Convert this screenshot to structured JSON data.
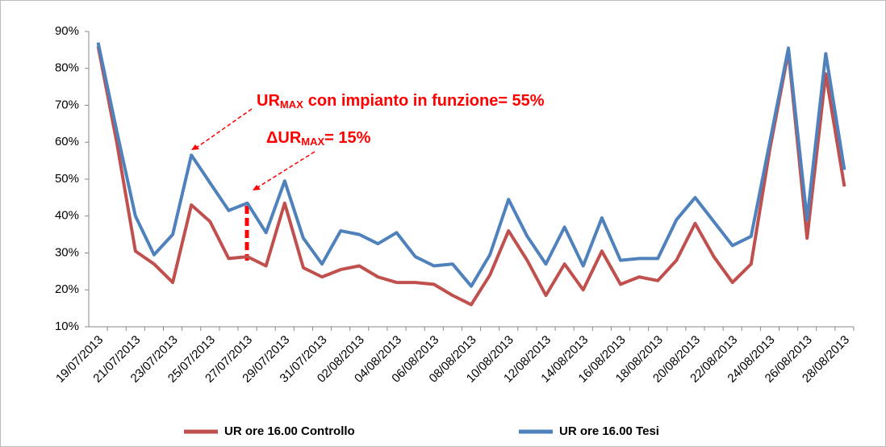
{
  "chart_data": {
    "type": "line",
    "categories": [
      "19/07/2013",
      null,
      "21/07/2013",
      null,
      "23/07/2013",
      null,
      "25/07/2013",
      null,
      "27/07/2013",
      null,
      "29/07/2013",
      null,
      "31/07/2013",
      null,
      "02/08/2013",
      null,
      "04/08/2013",
      null,
      "06/08/2013",
      null,
      "08/08/2013",
      null,
      "10/08/2013",
      null,
      "12/08/2013",
      null,
      "14/08/2013",
      null,
      "16/08/2013",
      null,
      "18/08/2013",
      null,
      "20/08/2013",
      null,
      "22/08/2013",
      null,
      "24/08/2013",
      null,
      "26/08/2013",
      null,
      "28/08/2013"
    ],
    "series": [
      {
        "name": "UR ore 16.00 Controllo",
        "color": "#c0504d",
        "values": [
          86,
          60,
          30.5,
          27,
          22,
          43,
          38.5,
          28.5,
          29,
          26.5,
          43.5,
          26,
          23.5,
          25.5,
          26.5,
          23.5,
          22,
          22,
          21.5,
          18.5,
          16,
          24,
          36,
          28,
          18.5,
          27,
          20,
          30.5,
          21.5,
          23.5,
          22.5,
          28,
          38,
          29,
          22,
          27,
          58,
          84.5,
          34,
          78.5,
          48
        ]
      },
      {
        "name": "UR ore 16.00 Tesi",
        "color": "#4f81bd",
        "values": [
          87,
          63,
          40,
          29.5,
          35,
          56.5,
          49,
          41.5,
          43.5,
          35.5,
          49.5,
          34,
          27,
          36,
          35,
          32.5,
          35.5,
          29,
          26.5,
          27,
          21,
          29.5,
          44.5,
          34.5,
          27,
          37,
          26.5,
          39.5,
          28,
          28.5,
          28.5,
          39,
          45,
          38.5,
          32,
          34.5,
          60,
          85.5,
          39,
          84,
          52.5
        ]
      }
    ],
    "ylim": [
      10,
      90
    ],
    "yticks": [
      {
        "value": 10,
        "label": "10%"
      },
      {
        "value": 20,
        "label": "20%"
      },
      {
        "value": 30,
        "label": "30%"
      },
      {
        "value": 40,
        "label": "40%"
      },
      {
        "value": 50,
        "label": "50%"
      },
      {
        "value": 60,
        "label": "60%"
      },
      {
        "value": 70,
        "label": "70%"
      },
      {
        "value": 80,
        "label": "80%"
      },
      {
        "value": 90,
        "label": "90%"
      }
    ],
    "annotations": [
      [
        "UR",
        "MAX",
        "con impianto in funzione= 55%"
      ],
      [
        "ΔUR",
        "MAX",
        "= 15%"
      ]
    ],
    "legend": "bottom"
  }
}
